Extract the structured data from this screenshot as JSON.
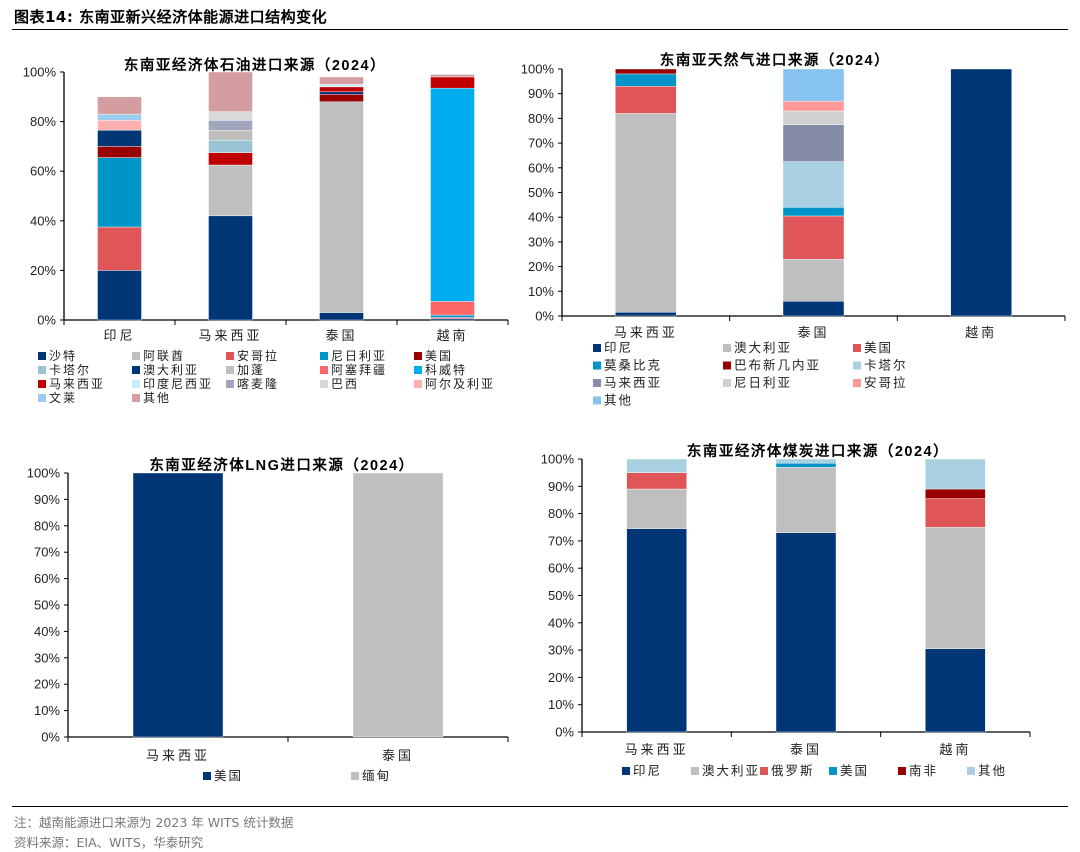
{
  "figure": {
    "title": "图表14:   东南亚新兴经济体能源进口结构变化",
    "note": "注：越南能源进口来源为 2023 年 WITS 统计数据",
    "source": "资料来源：EIA、WITS，华泰研究"
  },
  "chart_data": [
    {
      "id": "oil",
      "type": "bar",
      "stacked": true,
      "title": "东南亚经济体石油进口来源（2024）",
      "xlabel": "",
      "ylabel": "",
      "ylim": [
        0,
        100
      ],
      "yticks": [
        "0%",
        "20%",
        "40%",
        "60%",
        "80%",
        "100%"
      ],
      "ytick_values": [
        0,
        20,
        40,
        60,
        80,
        100
      ],
      "categories": [
        "印尼",
        "马来西亚",
        "泰国",
        "越南"
      ],
      "legend_position": "bottom",
      "legend_columns": 5,
      "series": [
        {
          "name": "沙特",
          "color": "#003676",
          "values": [
            20,
            42,
            3,
            0.5
          ]
        },
        {
          "name": "阿联酋",
          "color": "#bfbfbf",
          "values": [
            0,
            0,
            85,
            0
          ]
        },
        {
          "name": "安哥拉",
          "color": "#e05558",
          "values": [
            17.5,
            0,
            0,
            0.5
          ]
        },
        {
          "name": "尼日利亚",
          "color": "#0094c8",
          "values": [
            28,
            0,
            0,
            1
          ]
        },
        {
          "name": "美国",
          "color": "#990000",
          "values": [
            4.5,
            0,
            3,
            0
          ]
        },
        {
          "name": "卡塔尔",
          "color": "#9ac3d4",
          "values": [
            0,
            0,
            0,
            0
          ]
        },
        {
          "name": "澳大利亚",
          "color": "#003676",
          "values": [
            6.5,
            0,
            1,
            0
          ]
        },
        {
          "name": "加蓬",
          "color": "#bfbfbf",
          "values": [
            0,
            20.5,
            0,
            0
          ]
        },
        {
          "name": "阿塞拜疆",
          "color": "#ff6666",
          "values": [
            0,
            0,
            0,
            5.5
          ]
        },
        {
          "name": "科威特",
          "color": "#00aeef",
          "values": [
            0,
            0,
            0,
            86
          ]
        },
        {
          "name": "马来西亚",
          "color": "#c00000",
          "values": [
            0,
            5,
            2,
            4.5
          ]
        },
        {
          "name": "印度尼西亚",
          "color": "#c9ebfa",
          "values": [
            0,
            0,
            1,
            0
          ]
        },
        {
          "name": "喀麦隆",
          "color": "#a1a6bf",
          "values": [
            0,
            4,
            0,
            0
          ]
        },
        {
          "name": "巴西",
          "color": "#d9d9d9",
          "values": [
            0,
            3.5,
            0,
            0
          ]
        },
        {
          "name": "阿尔及利亚",
          "color": "#ffb0b0",
          "values": [
            4,
            0,
            0,
            0
          ]
        },
        {
          "name": "文莱",
          "color": "#9dcbf0",
          "values": [
            2.5,
            0,
            0,
            0
          ]
        },
        {
          "name": "其他",
          "color": "#d49ea0",
          "values": [
            7,
            16,
            3,
            1
          ]
        }
      ],
      "stack_order_note": "Malaysia also includes 卡塔尔 ~5% and 阿联酋 ~4% segments",
      "extra_segments": {
        "马来西亚": [
          {
            "name": "卡塔尔",
            "value": 5,
            "color": "#9ac3d4"
          },
          {
            "name": "阿联酋",
            "value": 4,
            "color": "#bfbfbf"
          }
        ]
      }
    },
    {
      "id": "gas",
      "type": "bar",
      "stacked": true,
      "title": "东南亚天然气进口来源（2024）",
      "ylim": [
        0,
        100
      ],
      "yticks": [
        "0%",
        "10%",
        "20%",
        "30%",
        "40%",
        "50%",
        "60%",
        "70%",
        "80%",
        "90%",
        "100%"
      ],
      "ytick_values": [
        0,
        10,
        20,
        30,
        40,
        50,
        60,
        70,
        80,
        90,
        100
      ],
      "categories": [
        "马来西亚",
        "泰国",
        "越南"
      ],
      "legend_position": "bottom",
      "legend_columns": 3,
      "series": [
        {
          "name": "印尼",
          "color": "#003676",
          "values": [
            1.5,
            6,
            100
          ]
        },
        {
          "name": "澳大利亚",
          "color": "#bfbfbf",
          "values": [
            80.5,
            17,
            0
          ]
        },
        {
          "name": "美国",
          "color": "#e05558",
          "values": [
            11,
            17.5,
            0
          ]
        },
        {
          "name": "莫桑比克",
          "color": "#0094c8",
          "values": [
            5,
            3.5,
            0
          ]
        },
        {
          "name": "巴布新几内亚",
          "color": "#990000",
          "values": [
            2,
            0,
            0
          ]
        },
        {
          "name": "卡塔尔",
          "color": "#a8d0e0",
          "values": [
            0,
            18.5,
            0
          ]
        },
        {
          "name": "马来西亚",
          "color": "#858ca6",
          "values": [
            0,
            15,
            0
          ]
        },
        {
          "name": "尼日利亚",
          "color": "#d0d0d0",
          "values": [
            0,
            5.5,
            0
          ]
        },
        {
          "name": "安哥拉",
          "color": "#ff9999",
          "values": [
            0,
            4,
            0
          ]
        },
        {
          "name": "其他",
          "color": "#86c3f0",
          "values": [
            0,
            13,
            0
          ]
        }
      ]
    },
    {
      "id": "lng",
      "type": "bar",
      "stacked": true,
      "title": "东南亚经济体LNG进口来源（2024）",
      "ylim": [
        0,
        100
      ],
      "yticks": [
        "0%",
        "10%",
        "20%",
        "30%",
        "40%",
        "50%",
        "60%",
        "70%",
        "80%",
        "90%",
        "100%"
      ],
      "ytick_values": [
        0,
        10,
        20,
        30,
        40,
        50,
        60,
        70,
        80,
        90,
        100
      ],
      "categories": [
        "马来西亚",
        "泰国"
      ],
      "legend_position": "bottom",
      "legend_columns": 2,
      "series": [
        {
          "name": "美国",
          "color": "#003676",
          "values": [
            100,
            0
          ]
        },
        {
          "name": "缅甸",
          "color": "#bfbfbf",
          "values": [
            0,
            100
          ]
        }
      ]
    },
    {
      "id": "coal",
      "type": "bar",
      "stacked": true,
      "title": "东南亚经济体煤炭进口来源（2024）",
      "ylim": [
        0,
        100
      ],
      "yticks": [
        "0%",
        "10%",
        "20%",
        "30%",
        "40%",
        "50%",
        "60%",
        "70%",
        "80%",
        "90%",
        "100%"
      ],
      "ytick_values": [
        0,
        10,
        20,
        30,
        40,
        50,
        60,
        70,
        80,
        90,
        100
      ],
      "categories": [
        "马来西亚",
        "泰国",
        "越南"
      ],
      "legend_position": "bottom",
      "legend_columns": 6,
      "series": [
        {
          "name": "印尼",
          "color": "#003676",
          "values": [
            74.5,
            73,
            30.5
          ]
        },
        {
          "name": "澳大利亚",
          "color": "#bfbfbf",
          "values": [
            14.5,
            24,
            44.5
          ]
        },
        {
          "name": "俄罗斯",
          "color": "#e05558",
          "values": [
            6,
            0,
            10.5
          ]
        },
        {
          "name": "美国",
          "color": "#0094c8",
          "values": [
            0,
            1.5,
            0
          ]
        },
        {
          "name": "南非",
          "color": "#990000",
          "values": [
            0,
            0,
            3.5
          ]
        },
        {
          "name": "其他",
          "color": "#a8d0e0",
          "values": [
            5,
            1.5,
            11
          ]
        }
      ]
    }
  ]
}
